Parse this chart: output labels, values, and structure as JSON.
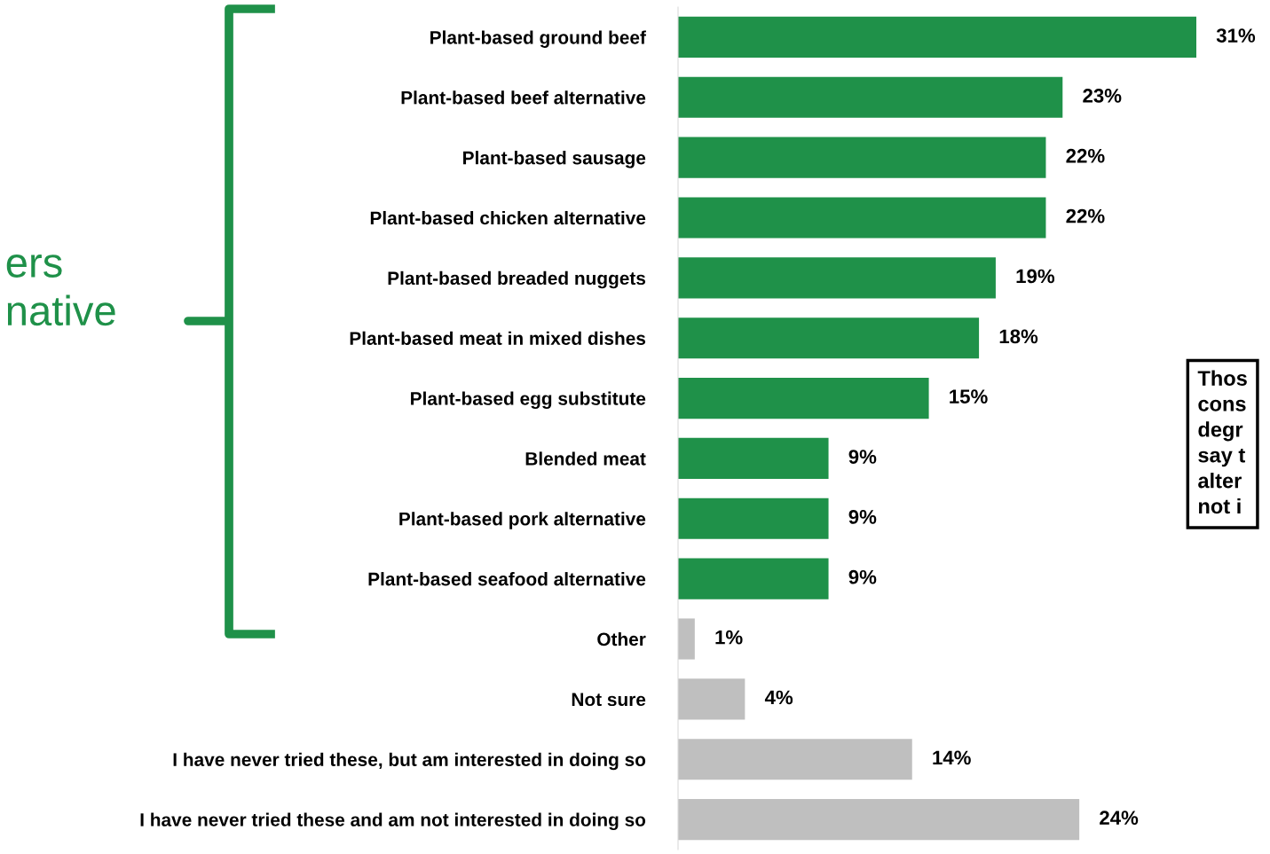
{
  "chart_data": {
    "type": "bar",
    "orientation": "horizontal",
    "grid": false,
    "value_labels": [
      "31%",
      "23%",
      "22%",
      "22%",
      "19%",
      "18%",
      "15%",
      "9%",
      "9%",
      "9%",
      "1%",
      "4%",
      "14%",
      "24%"
    ],
    "categories": [
      "Plant-based ground beef",
      "Plant-based beef alternative",
      "Plant-based sausage",
      "Plant-based chicken alternative",
      "Plant-based breaded nuggets",
      "Plant-based meat in mixed dishes",
      "Plant-based egg substitute",
      "Blended meat",
      "Plant-based pork alternative",
      "Plant-based seafood alternative",
      "Other",
      "Not sure",
      "I have never tried these, but am interested in doing so",
      "I have never tried these and am not interested in doing so"
    ],
    "values": [
      31,
      23,
      22,
      22,
      19,
      18,
      15,
      9,
      9,
      9,
      1,
      4,
      14,
      24
    ],
    "colors": [
      "#1f9149",
      "#1f9149",
      "#1f9149",
      "#1f9149",
      "#1f9149",
      "#1f9149",
      "#1f9149",
      "#1f9149",
      "#1f9149",
      "#1f9149",
      "#bfbfbf",
      "#bfbfbf",
      "#bfbfbf",
      "#bfbfbf"
    ],
    "annotations": [
      "ers\nnative",
      "Thos\ncons\ndegr\nsay t\nalter\nnot i"
    ]
  }
}
